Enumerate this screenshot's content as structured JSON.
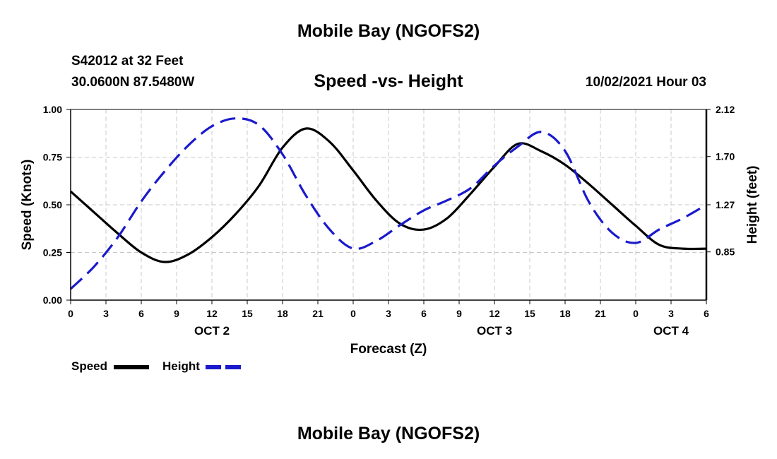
{
  "header": {
    "top_title": "Mobile Bay (NGOFS2)",
    "station": "S42012 at 32 Feet",
    "coords": "30.0600N  87.5480W",
    "chart_title": "Speed -vs- Height",
    "timestamp": "10/02/2021 Hour 03",
    "bottom_title": "Mobile Bay (NGOFS2)"
  },
  "legend": {
    "speed_label": "Speed",
    "height_label": "Height"
  },
  "colors": {
    "speed": "#000000",
    "height": "#1a1acc",
    "grid": "#c8c8c8"
  },
  "chart_data": {
    "type": "line",
    "title": "Speed -vs- Height",
    "xlabel": "Forecast (Z)",
    "ylabel": "Speed (Knots)",
    "y2label": "Height (feet)",
    "x_unit": "forecast hour",
    "xlim": [
      0,
      54
    ],
    "ylim": [
      0,
      1
    ],
    "y2lim": [
      0.42,
      2.12
    ],
    "x_ticks": [
      0,
      3,
      6,
      9,
      12,
      15,
      18,
      21,
      24,
      27,
      30,
      33,
      36,
      39,
      42,
      45,
      48,
      51,
      54
    ],
    "x_tick_labels": [
      "0",
      "3",
      "6",
      "9",
      "12",
      "15",
      "18",
      "21",
      "0",
      "3",
      "6",
      "9",
      "12",
      "15",
      "18",
      "21",
      "0",
      "3",
      "6"
    ],
    "y_ticks": [
      0,
      0.25,
      0.5,
      0.75,
      1.0
    ],
    "y_tick_labels": [
      "0.00",
      "0.25",
      "0.50",
      "0.75",
      "1.00"
    ],
    "y2_ticks": [
      0.85,
      1.27,
      1.7,
      2.12
    ],
    "y2_tick_labels": [
      "0.85",
      "1.27",
      "1.70",
      "2.12"
    ],
    "date_labels": [
      {
        "x": 12,
        "label": "OCT 2"
      },
      {
        "x": 36,
        "label": "OCT 3"
      },
      {
        "x": 51,
        "label": "OCT 4"
      }
    ],
    "grid": true,
    "legend_position": "bottom-left",
    "series": [
      {
        "name": "Speed",
        "axis": "left",
        "style": "solid",
        "x": [
          0,
          2,
          4,
          6,
          8,
          10,
          12,
          14,
          16,
          18,
          20,
          22,
          24,
          26,
          28,
          30,
          32,
          34,
          36,
          38,
          40,
          42,
          44,
          46,
          48,
          50,
          52,
          54
        ],
        "y": [
          0.57,
          0.46,
          0.35,
          0.25,
          0.2,
          0.24,
          0.33,
          0.45,
          0.6,
          0.8,
          0.9,
          0.83,
          0.68,
          0.52,
          0.4,
          0.37,
          0.43,
          0.56,
          0.7,
          0.82,
          0.78,
          0.71,
          0.61,
          0.5,
          0.39,
          0.29,
          0.27,
          0.27
        ]
      },
      {
        "name": "Height",
        "axis": "right",
        "style": "dashed",
        "x": [
          0,
          2,
          4,
          6,
          8,
          10,
          12,
          14,
          16,
          18,
          20,
          22,
          24,
          26,
          28,
          30,
          32,
          34,
          36,
          38,
          40,
          42,
          44,
          46,
          48,
          50,
          52,
          54
        ],
        "y": [
          0.52,
          0.72,
          0.98,
          1.3,
          1.57,
          1.8,
          1.97,
          2.04,
          1.98,
          1.72,
          1.35,
          1.05,
          0.88,
          0.95,
          1.09,
          1.22,
          1.31,
          1.42,
          1.62,
          1.79,
          1.92,
          1.75,
          1.3,
          1.02,
          0.93,
          1.05,
          1.15,
          1.27
        ]
      }
    ]
  }
}
